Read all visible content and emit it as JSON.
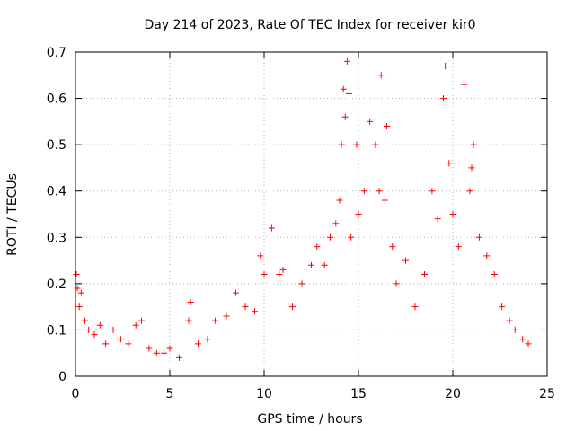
{
  "chart_data": {
    "type": "scatter",
    "title": "Day 214 of 2023, Rate Of TEC Index for receiver kir0",
    "xlabel": "GPS time / hours",
    "ylabel": "ROTI / TECUs",
    "xlim": [
      0,
      25
    ],
    "ylim": [
      0,
      0.7
    ],
    "x_ticks": [
      "0",
      "5",
      "10",
      "15",
      "20",
      "25"
    ],
    "y_ticks": [
      "0",
      "0.1",
      "0.2",
      "0.3",
      "0.4",
      "0.5",
      "0.6",
      "0.7"
    ],
    "grid": true,
    "legend": "none",
    "marker": "+",
    "color": "#ff0000",
    "series": [
      {
        "values": [
          [
            0.05,
            0.22
          ],
          [
            0.1,
            0.19
          ],
          [
            0.2,
            0.15
          ],
          [
            0.3,
            0.18
          ],
          [
            0.5,
            0.12
          ],
          [
            0.7,
            0.1
          ],
          [
            1.0,
            0.09
          ],
          [
            1.3,
            0.11
          ],
          [
            1.6,
            0.07
          ],
          [
            2.0,
            0.1
          ],
          [
            2.4,
            0.08
          ],
          [
            2.8,
            0.07
          ],
          [
            3.2,
            0.11
          ],
          [
            3.5,
            0.12
          ],
          [
            3.9,
            0.06
          ],
          [
            4.3,
            0.05
          ],
          [
            4.7,
            0.05
          ],
          [
            5.0,
            0.06
          ],
          [
            5.5,
            0.04
          ],
          [
            6.0,
            0.12
          ],
          [
            6.1,
            0.16
          ],
          [
            6.5,
            0.07
          ],
          [
            7.0,
            0.08
          ],
          [
            7.4,
            0.12
          ],
          [
            8.0,
            0.13
          ],
          [
            8.5,
            0.18
          ],
          [
            9.0,
            0.15
          ],
          [
            9.5,
            0.14
          ],
          [
            9.8,
            0.26
          ],
          [
            10.0,
            0.22
          ],
          [
            10.4,
            0.32
          ],
          [
            10.8,
            0.22
          ],
          [
            11.0,
            0.23
          ],
          [
            11.5,
            0.15
          ],
          [
            12.0,
            0.2
          ],
          [
            12.5,
            0.24
          ],
          [
            12.8,
            0.28
          ],
          [
            13.2,
            0.24
          ],
          [
            13.5,
            0.3
          ],
          [
            13.8,
            0.33
          ],
          [
            14.0,
            0.38
          ],
          [
            14.1,
            0.5
          ],
          [
            14.2,
            0.62
          ],
          [
            14.3,
            0.56
          ],
          [
            14.4,
            0.68
          ],
          [
            14.5,
            0.61
          ],
          [
            14.6,
            0.3
          ],
          [
            14.9,
            0.5
          ],
          [
            15.0,
            0.35
          ],
          [
            15.3,
            0.4
          ],
          [
            15.6,
            0.55
          ],
          [
            15.9,
            0.5
          ],
          [
            16.1,
            0.4
          ],
          [
            16.2,
            0.65
          ],
          [
            16.4,
            0.38
          ],
          [
            16.5,
            0.54
          ],
          [
            16.8,
            0.28
          ],
          [
            17.0,
            0.2
          ],
          [
            17.5,
            0.25
          ],
          [
            18.0,
            0.15
          ],
          [
            18.5,
            0.22
          ],
          [
            18.9,
            0.4
          ],
          [
            19.2,
            0.34
          ],
          [
            19.5,
            0.6
          ],
          [
            19.6,
            0.67
          ],
          [
            19.8,
            0.46
          ],
          [
            20.0,
            0.35
          ],
          [
            20.3,
            0.28
          ],
          [
            20.6,
            0.63
          ],
          [
            20.9,
            0.4
          ],
          [
            21.0,
            0.45
          ],
          [
            21.1,
            0.5
          ],
          [
            21.4,
            0.3
          ],
          [
            21.8,
            0.26
          ],
          [
            22.2,
            0.22
          ],
          [
            22.6,
            0.15
          ],
          [
            23.0,
            0.12
          ],
          [
            23.3,
            0.1
          ],
          [
            23.7,
            0.08
          ],
          [
            24.0,
            0.07
          ]
        ]
      }
    ]
  }
}
